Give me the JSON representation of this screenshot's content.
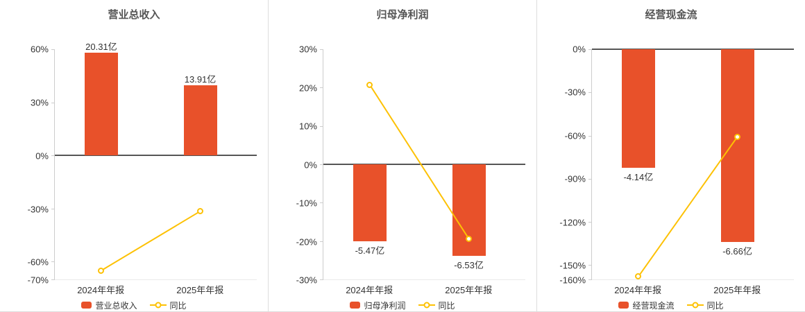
{
  "theme": {
    "background": "#ffffff",
    "bar_color": "#e8512a",
    "line_color": "#fdc104",
    "marker_fill": "#ffffff",
    "title_color": "#555555",
    "text_color": "#333333",
    "axis_line_color": "#cccccc",
    "zero_line_color": "#555555",
    "divider_color": "#dddddd"
  },
  "chart_data": [
    {
      "type": "bar+line",
      "title": "营业总收入",
      "categories": [
        "2024年年报",
        "2025年年报"
      ],
      "axis": {
        "max": 60,
        "min": -70,
        "unit": "%",
        "ticks": [
          60,
          30,
          0,
          -30,
          -60,
          -70
        ],
        "tick_labels": [
          "60%",
          "30%",
          "0%",
          "-30%",
          "-60%",
          "-70%"
        ]
      },
      "bars": {
        "name": "营业总收入",
        "unit": "亿",
        "values": [
          20.31,
          13.91
        ],
        "labels": [
          "20.31亿",
          "13.91亿"
        ],
        "plot_pct": [
          58,
          39.7
        ]
      },
      "line": {
        "name": "同比",
        "unit": "%",
        "values": [
          -65,
          -31.5
        ]
      },
      "legend": {
        "bar": "营业总收入",
        "line": "同比"
      },
      "legend_position": "bottom"
    },
    {
      "type": "bar+line",
      "title": "归母净利润",
      "categories": [
        "2024年年报",
        "2025年年报"
      ],
      "axis": {
        "max": 30,
        "min": -30,
        "unit": "%",
        "ticks": [
          30,
          20,
          10,
          0,
          -10,
          -20,
          -30
        ],
        "tick_labels": [
          "30%",
          "20%",
          "10%",
          "0%",
          "-10%",
          "-20%",
          "-30%"
        ]
      },
      "bars": {
        "name": "归母净利润",
        "unit": "亿",
        "values": [
          -5.47,
          -6.53
        ],
        "labels": [
          "-5.47亿",
          "-6.53亿"
        ],
        "plot_pct": [
          -20,
          -23.9
        ]
      },
      "line": {
        "name": "同比",
        "unit": "%",
        "values": [
          20.7,
          -19.4
        ]
      },
      "legend": {
        "bar": "归母净利润",
        "line": "同比"
      },
      "legend_position": "bottom"
    },
    {
      "type": "bar+line",
      "title": "经营现金流",
      "categories": [
        "2024年年报",
        "2025年年报"
      ],
      "axis": {
        "max": 0,
        "min": -160,
        "unit": "%",
        "ticks": [
          0,
          -30,
          -60,
          -90,
          -120,
          -150,
          -160
        ],
        "tick_labels": [
          "0%",
          "-30%",
          "-60%",
          "-90%",
          "-120%",
          "-150%",
          "-160%"
        ]
      },
      "bars": {
        "name": "经营现金流",
        "unit": "亿",
        "values": [
          -4.14,
          -6.66
        ],
        "labels": [
          "-4.14亿",
          "-6.66亿"
        ],
        "plot_pct": [
          -82.5,
          -134
        ]
      },
      "line": {
        "name": "同比",
        "unit": "%",
        "values": [
          -158,
          -60.9
        ]
      },
      "legend": {
        "bar": "经营现金流",
        "line": "同比"
      },
      "legend_position": "bottom"
    }
  ]
}
